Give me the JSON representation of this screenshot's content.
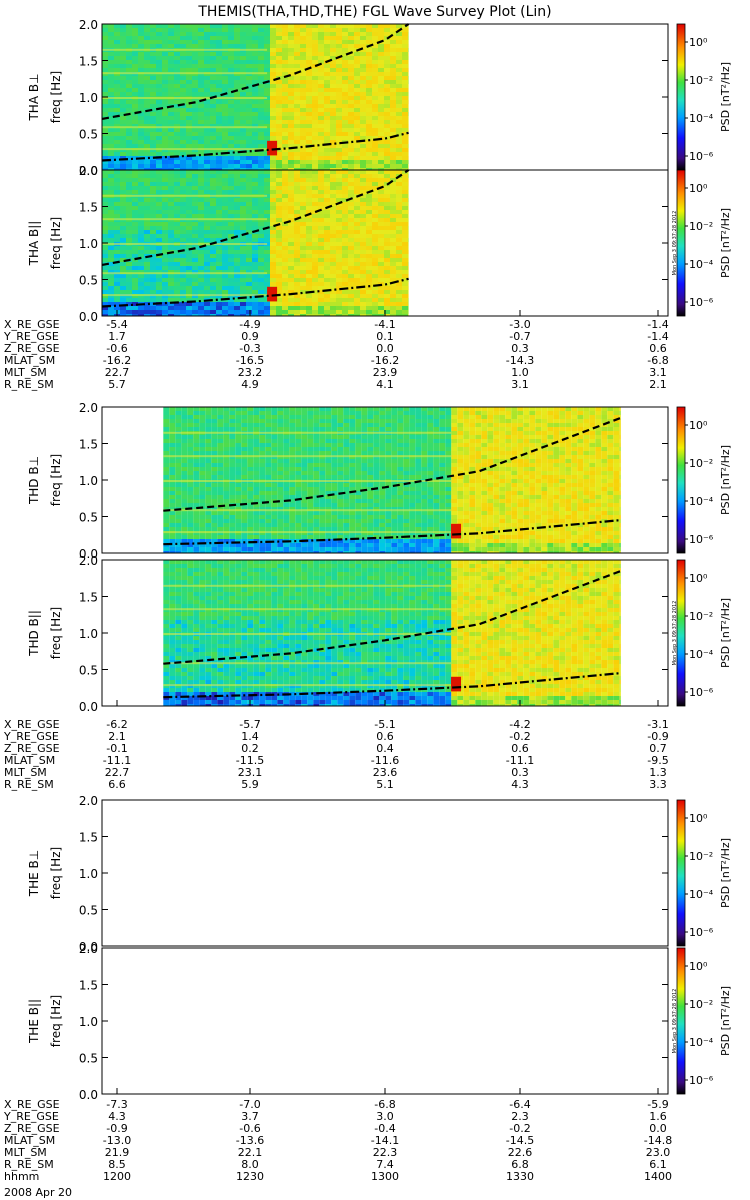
{
  "title": "THEMIS(THA,THD,THE) FGL Wave Survey Plot (Lin)",
  "colorbar": {
    "label": "PSD [nT²/Hz]",
    "ticks": [
      "10⁰",
      "10⁻²",
      "10⁻⁴",
      "10⁻⁶"
    ],
    "stamp": "Mon Sep  3 09:37:28 2012"
  },
  "date_label": "2008 Apr 20",
  "chart_data": [
    {
      "type": "heatmap",
      "probe": "THA",
      "time_start": "1200",
      "time_end": "1400",
      "data_span_hhmm": [
        "1200",
        "1305"
      ],
      "intense_band_hhmm": [
        "1235",
        "1305"
      ],
      "panels": [
        {
          "name": "THA B⊥",
          "ylabel": "freq [Hz]",
          "ylim": [
            0,
            2.0
          ],
          "yticks": [
            "0.0",
            "0.5",
            "1.0",
            "1.5",
            "2.0"
          ]
        },
        {
          "name": "THA B||",
          "ylabel": "freq [Hz]",
          "ylim": [
            0,
            2.0
          ],
          "yticks": [
            "0.0",
            "0.5",
            "1.0",
            "1.5",
            "2.0"
          ]
        }
      ],
      "curves": {
        "upper": {
          "x_hhmm": [
            "1200",
            "1220",
            "1240",
            "1300",
            "1305"
          ],
          "freq": [
            0.7,
            0.93,
            1.3,
            1.78,
            2.0
          ]
        },
        "lower": {
          "x_hhmm": [
            "1200",
            "1220",
            "1240",
            "1300",
            "1305"
          ],
          "freq": [
            0.13,
            0.2,
            0.3,
            0.43,
            0.51
          ]
        }
      },
      "ephemeris": [
        {
          "label": "X_RE_GSE",
          "values": [
            "-5.4",
            "-4.9",
            "-4.1",
            "-3.0",
            "-1.4"
          ]
        },
        {
          "label": "Y_RE_GSE",
          "values": [
            "1.7",
            "0.9",
            "0.1",
            "-0.7",
            "-1.4"
          ]
        },
        {
          "label": "Z_RE_GSE",
          "values": [
            "-0.6",
            "-0.3",
            "0.0",
            "0.3",
            "0.6"
          ]
        },
        {
          "label": "MLAT_SM",
          "values": [
            "-16.2",
            "-16.5",
            "-16.2",
            "-14.3",
            "-6.8"
          ]
        },
        {
          "label": "MLT_SM",
          "values": [
            "22.7",
            "23.2",
            "23.9",
            "1.0",
            "3.1"
          ]
        },
        {
          "label": "R_RE_SM",
          "values": [
            "5.7",
            "4.9",
            "4.1",
            "3.1",
            "2.1"
          ]
        }
      ]
    },
    {
      "type": "heatmap",
      "probe": "THD",
      "time_start": "1200",
      "time_end": "1400",
      "data_span_hhmm": [
        "1213",
        "1350"
      ],
      "intense_band_hhmm": [
        "1314",
        "1350"
      ],
      "panels": [
        {
          "name": "THD B⊥",
          "ylabel": "freq [Hz]",
          "ylim": [
            0,
            2.0
          ],
          "yticks": [
            "0.0",
            "0.5",
            "1.0",
            "1.5",
            "2.0"
          ]
        },
        {
          "name": "THD B||",
          "ylabel": "freq [Hz]",
          "ylim": [
            0,
            2.0
          ],
          "yticks": [
            "0.0",
            "0.5",
            "1.0",
            "1.5",
            "2.0"
          ]
        }
      ],
      "curves": {
        "upper": {
          "x_hhmm": [
            "1213",
            "1240",
            "1300",
            "1320",
            "1350"
          ],
          "freq": [
            0.58,
            0.72,
            0.9,
            1.12,
            1.85
          ]
        },
        "lower": {
          "x_hhmm": [
            "1213",
            "1240",
            "1300",
            "1320",
            "1350"
          ],
          "freq": [
            0.12,
            0.16,
            0.21,
            0.27,
            0.45
          ]
        }
      },
      "ephemeris": [
        {
          "label": "X_RE_GSE",
          "values": [
            "-6.2",
            "-5.7",
            "-5.1",
            "-4.2",
            "-3.1"
          ]
        },
        {
          "label": "Y_RE_GSE",
          "values": [
            "2.1",
            "1.4",
            "0.6",
            "-0.2",
            "-0.9"
          ]
        },
        {
          "label": "Z_RE_GSE",
          "values": [
            "-0.1",
            "0.2",
            "0.4",
            "0.6",
            "0.7"
          ]
        },
        {
          "label": "MLAT_SM",
          "values": [
            "-11.1",
            "-11.5",
            "-11.6",
            "-11.1",
            "-9.5"
          ]
        },
        {
          "label": "MLT_SM",
          "values": [
            "22.7",
            "23.1",
            "23.6",
            "0.3",
            "1.3"
          ]
        },
        {
          "label": "R_RE_SM",
          "values": [
            "6.6",
            "5.9",
            "5.1",
            "4.3",
            "3.3"
          ]
        }
      ]
    },
    {
      "type": "heatmap",
      "probe": "THE",
      "time_start": "1200",
      "time_end": "1400",
      "data_span_hhmm": [],
      "panels": [
        {
          "name": "THE B⊥",
          "ylabel": "freq [Hz]",
          "ylim": [
            0,
            2.0
          ],
          "yticks": [
            "0.0",
            "0.5",
            "1.0",
            "1.5",
            "2.0"
          ]
        },
        {
          "name": "THE B||",
          "ylabel": "freq [Hz]",
          "ylim": [
            0,
            2.0
          ],
          "yticks": [
            "0.0",
            "0.5",
            "1.0",
            "1.5",
            "2.0"
          ]
        }
      ],
      "ephemeris": [
        {
          "label": "X_RE_GSE",
          "values": [
            "-7.3",
            "-7.0",
            "-6.8",
            "-6.4",
            "-5.9"
          ]
        },
        {
          "label": "Y_RE_GSE",
          "values": [
            "4.3",
            "3.7",
            "3.0",
            "2.3",
            "1.6"
          ]
        },
        {
          "label": "Z_RE_GSE",
          "values": [
            "-0.9",
            "-0.6",
            "-0.4",
            "-0.2",
            "0.0"
          ]
        },
        {
          "label": "MLAT_SM",
          "values": [
            "-13.0",
            "-13.6",
            "-14.1",
            "-14.5",
            "-14.8"
          ]
        },
        {
          "label": "MLT_SM",
          "values": [
            "21.9",
            "22.1",
            "22.3",
            "22.6",
            "23.0"
          ]
        },
        {
          "label": "R_RE_SM",
          "values": [
            "8.5",
            "8.0",
            "7.4",
            "6.8",
            "6.1"
          ]
        },
        {
          "label": "hhmm",
          "values": [
            "1200",
            "1230",
            "1300",
            "1330",
            "1400"
          ]
        }
      ]
    }
  ]
}
